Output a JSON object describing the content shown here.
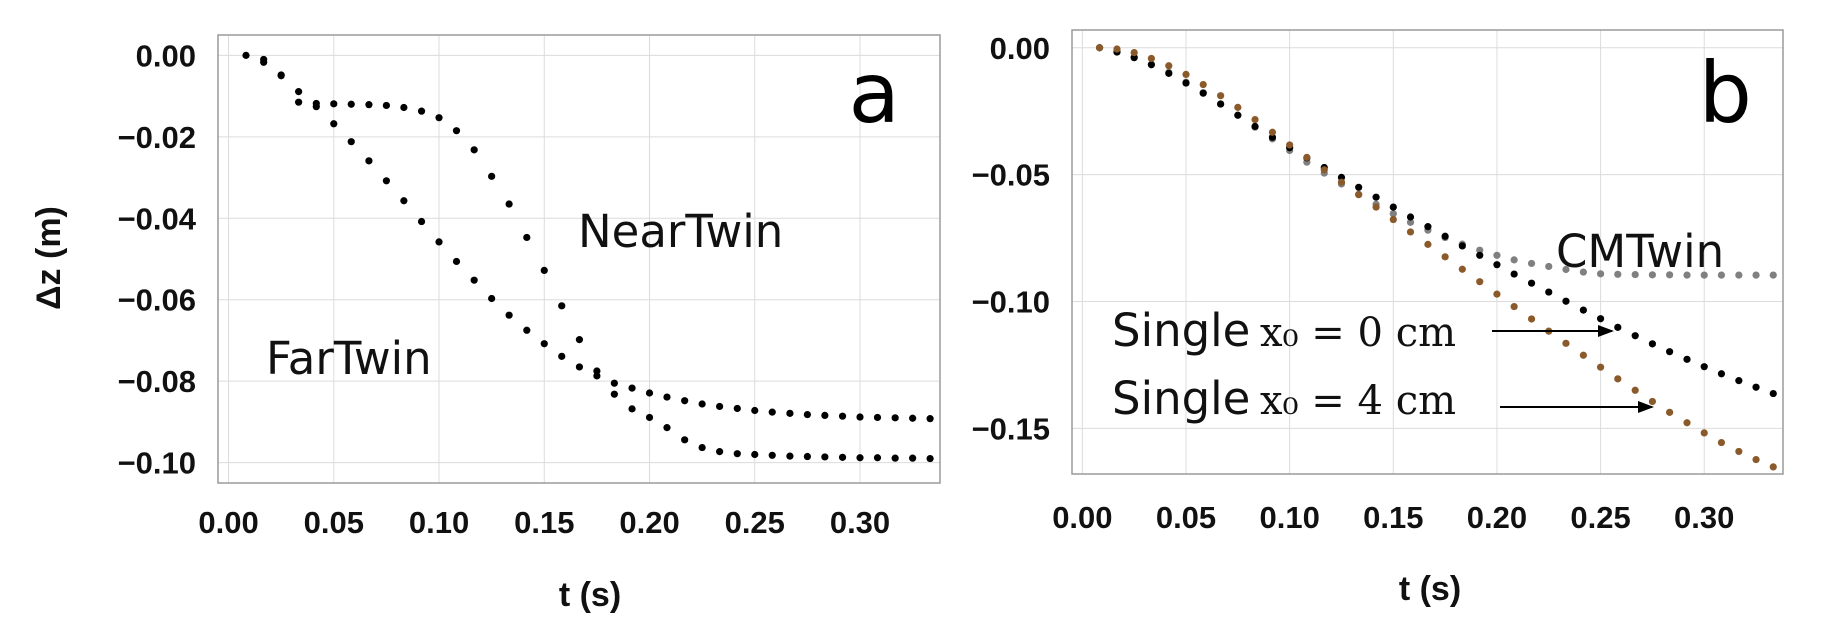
{
  "chart_data": [
    {
      "type": "scatter",
      "panel_label": "a",
      "xlabel": "t (s)",
      "ylabel": "Δz (m)",
      "xlim": [
        -0.005,
        0.338
      ],
      "ylim": [
        -0.105,
        0.005
      ],
      "xticks": [
        0.0,
        0.05,
        0.1,
        0.15,
        0.2,
        0.25,
        0.3
      ],
      "xtick_labels": [
        "0.00",
        "0.05",
        "0.10",
        "0.15",
        "0.20",
        "0.25",
        "0.30"
      ],
      "yticks": [
        0.0,
        -0.02,
        -0.04,
        -0.06,
        -0.08,
        -0.1
      ],
      "ytick_labels": [
        "0.00",
        "−0.02",
        "−0.04",
        "−0.06",
        "−0.08",
        "−0.10"
      ],
      "grid": true,
      "annotations": [
        {
          "text": "NearTwin",
          "x": 0.168,
          "y": -0.043
        },
        {
          "text": "FarTwin",
          "x": 0.022,
          "y": -0.0795
        }
      ],
      "series": [
        {
          "name": "NearTwin",
          "color": "#000000",
          "x": [
            0.0083,
            0.0167,
            0.025,
            0.0333,
            0.0417,
            0.05,
            0.0583,
            0.0667,
            0.075,
            0.0833,
            0.0917,
            0.1,
            0.1083,
            0.1167,
            0.125,
            0.1333,
            0.1417,
            0.15,
            0.1583,
            0.1667,
            0.175,
            0.1833,
            0.1917,
            0.2,
            0.2083,
            0.2167,
            0.225,
            0.2333,
            0.2417,
            0.25,
            0.2583,
            0.2667,
            0.275,
            0.2833,
            0.2917,
            0.3,
            0.3083,
            0.3167,
            0.325,
            0.3333
          ],
          "y": [
            0.0,
            -0.001,
            -0.005,
            -0.0115,
            -0.0118,
            -0.0119,
            -0.012,
            -0.0121,
            -0.0123,
            -0.0128,
            -0.0137,
            -0.0153,
            -0.0185,
            -0.0232,
            -0.0297,
            -0.0365,
            -0.0447,
            -0.0528,
            -0.0615,
            -0.0698,
            -0.0775,
            -0.0832,
            -0.0868,
            -0.0889,
            -0.0914,
            -0.0944,
            -0.0963,
            -0.0973,
            -0.0978,
            -0.098,
            -0.0982,
            -0.0984,
            -0.0985,
            -0.0986,
            -0.0987,
            -0.0988,
            -0.0988,
            -0.0989,
            -0.0989,
            -0.099
          ]
        },
        {
          "name": "FarTwin",
          "color": "#000000",
          "x": [
            0.0167,
            0.025,
            0.0333,
            0.0417,
            0.05,
            0.0583,
            0.0667,
            0.075,
            0.0833,
            0.0917,
            0.1,
            0.1083,
            0.1167,
            0.125,
            0.1333,
            0.1417,
            0.15,
            0.1583,
            0.1667,
            0.175,
            0.1833,
            0.1917,
            0.2,
            0.2083,
            0.2167,
            0.225,
            0.2333,
            0.2417,
            0.25,
            0.2583,
            0.2667,
            0.275,
            0.2833,
            0.2917,
            0.3,
            0.3083,
            0.3167,
            0.325,
            0.3333
          ],
          "y": [
            -0.0017,
            -0.0048,
            -0.0089,
            -0.0126,
            -0.0168,
            -0.0212,
            -0.0259,
            -0.0308,
            -0.0357,
            -0.0408,
            -0.0458,
            -0.0506,
            -0.0552,
            -0.0597,
            -0.0638,
            -0.0675,
            -0.0708,
            -0.0739,
            -0.0765,
            -0.0787,
            -0.0805,
            -0.0817,
            -0.0829,
            -0.0839,
            -0.0848,
            -0.0856,
            -0.0862,
            -0.0867,
            -0.0872,
            -0.0876,
            -0.0879,
            -0.0882,
            -0.0884,
            -0.0886,
            -0.0888,
            -0.0889,
            -0.089,
            -0.0891,
            -0.0892
          ]
        }
      ]
    },
    {
      "type": "scatter",
      "panel_label": "b",
      "xlabel": "t (s)",
      "ylabel": "",
      "xlim": [
        -0.005,
        0.338
      ],
      "ylim": [
        -0.168,
        0.007
      ],
      "xticks": [
        0.0,
        0.05,
        0.1,
        0.15,
        0.2,
        0.25,
        0.3
      ],
      "xtick_labels": [
        "0.00",
        "0.05",
        "0.10",
        "0.15",
        "0.20",
        "0.25",
        "0.30"
      ],
      "yticks": [
        0.0,
        -0.05,
        -0.1,
        -0.15
      ],
      "ytick_labels": [
        "0.00",
        "−0.05",
        "−0.10",
        "−0.15"
      ],
      "grid": true,
      "annotations": [
        {
          "text": "CMTwin"
        },
        {
          "text": "Single",
          "math": "x₀ = 0 cm"
        },
        {
          "text": "Single",
          "math": "x₀ = 4 cm"
        }
      ],
      "series": [
        {
          "name": "CMTwin",
          "color": "#808080",
          "x": [
            0.0083,
            0.0167,
            0.025,
            0.0333,
            0.0417,
            0.05,
            0.0583,
            0.0667,
            0.075,
            0.0833,
            0.0917,
            0.1,
            0.1083,
            0.1167,
            0.125,
            0.1333,
            0.1417,
            0.15,
            0.1583,
            0.1667,
            0.175,
            0.1833,
            0.1917,
            0.2,
            0.2083,
            0.2167,
            0.225,
            0.2333,
            0.2417,
            0.25,
            0.2583,
            0.2667,
            0.275,
            0.2833,
            0.2917,
            0.3,
            0.3083,
            0.3167,
            0.325,
            0.3333
          ],
          "y": [
            0.0,
            -0.0014,
            -0.0036,
            -0.0065,
            -0.0097,
            -0.0136,
            -0.0177,
            -0.0221,
            -0.0266,
            -0.0313,
            -0.0359,
            -0.0405,
            -0.0451,
            -0.0494,
            -0.0537,
            -0.0578,
            -0.0617,
            -0.0654,
            -0.0688,
            -0.0719,
            -0.0748,
            -0.0774,
            -0.0798,
            -0.0818,
            -0.0836,
            -0.085,
            -0.0862,
            -0.0874,
            -0.0884,
            -0.0891,
            -0.0893,
            -0.0894,
            -0.0895,
            -0.0895,
            -0.0896,
            -0.0896,
            -0.0896,
            -0.0896,
            -0.0896,
            -0.0896
          ]
        },
        {
          "name": "Single x0 = 0 cm",
          "color": "#000000",
          "x": [
            0.0083,
            0.0167,
            0.025,
            0.0333,
            0.0417,
            0.05,
            0.0583,
            0.0667,
            0.075,
            0.0833,
            0.0917,
            0.1,
            0.1083,
            0.1167,
            0.125,
            0.1333,
            0.1417,
            0.15,
            0.1583,
            0.1667,
            0.175,
            0.1833,
            0.1917,
            0.2,
            0.2083,
            0.2167,
            0.225,
            0.2333,
            0.2417,
            0.25,
            0.2583,
            0.2667,
            0.275,
            0.2833,
            0.2917,
            0.3,
            0.3083,
            0.3167,
            0.325,
            0.3333
          ],
          "y": [
            0.0,
            -0.0017,
            -0.0039,
            -0.0067,
            -0.0101,
            -0.0139,
            -0.0179,
            -0.0222,
            -0.0266,
            -0.031,
            -0.0353,
            -0.0394,
            -0.0434,
            -0.0472,
            -0.0511,
            -0.055,
            -0.0589,
            -0.0628,
            -0.0667,
            -0.0705,
            -0.0743,
            -0.0781,
            -0.0818,
            -0.0855,
            -0.0892,
            -0.0928,
            -0.0963,
            -0.0999,
            -0.1034,
            -0.1068,
            -0.1102,
            -0.1135,
            -0.1167,
            -0.1198,
            -0.1228,
            -0.1257,
            -0.1285,
            -0.1312,
            -0.1338,
            -0.1363
          ]
        },
        {
          "name": "Single x0 = 4 cm",
          "color": "#8B5A2B",
          "x": [
            0.0083,
            0.0167,
            0.025,
            0.0333,
            0.0417,
            0.05,
            0.0583,
            0.0667,
            0.075,
            0.0833,
            0.0917,
            0.1,
            0.1083,
            0.1167,
            0.125,
            0.1333,
            0.1417,
            0.15,
            0.1583,
            0.1667,
            0.175,
            0.1833,
            0.1917,
            0.2,
            0.2083,
            0.2167,
            0.225,
            0.2333,
            0.2417,
            0.25,
            0.2583,
            0.2667,
            0.275,
            0.2833,
            0.2917,
            0.3,
            0.3083,
            0.3167,
            0.325,
            0.3333
          ],
          "y": [
            0.0,
            -0.0005,
            -0.0019,
            -0.0042,
            -0.0071,
            -0.0105,
            -0.0145,
            -0.0189,
            -0.0235,
            -0.0283,
            -0.0333,
            -0.0383,
            -0.0432,
            -0.0481,
            -0.053,
            -0.0579,
            -0.0628,
            -0.0677,
            -0.0726,
            -0.0775,
            -0.0824,
            -0.0873,
            -0.0922,
            -0.0971,
            -0.102,
            -0.1069,
            -0.1117,
            -0.1165,
            -0.1212,
            -0.1259,
            -0.1305,
            -0.135,
            -0.1394,
            -0.1437,
            -0.1478,
            -0.1518,
            -0.1556,
            -0.1591,
            -0.1623,
            -0.1652
          ]
        }
      ]
    }
  ]
}
